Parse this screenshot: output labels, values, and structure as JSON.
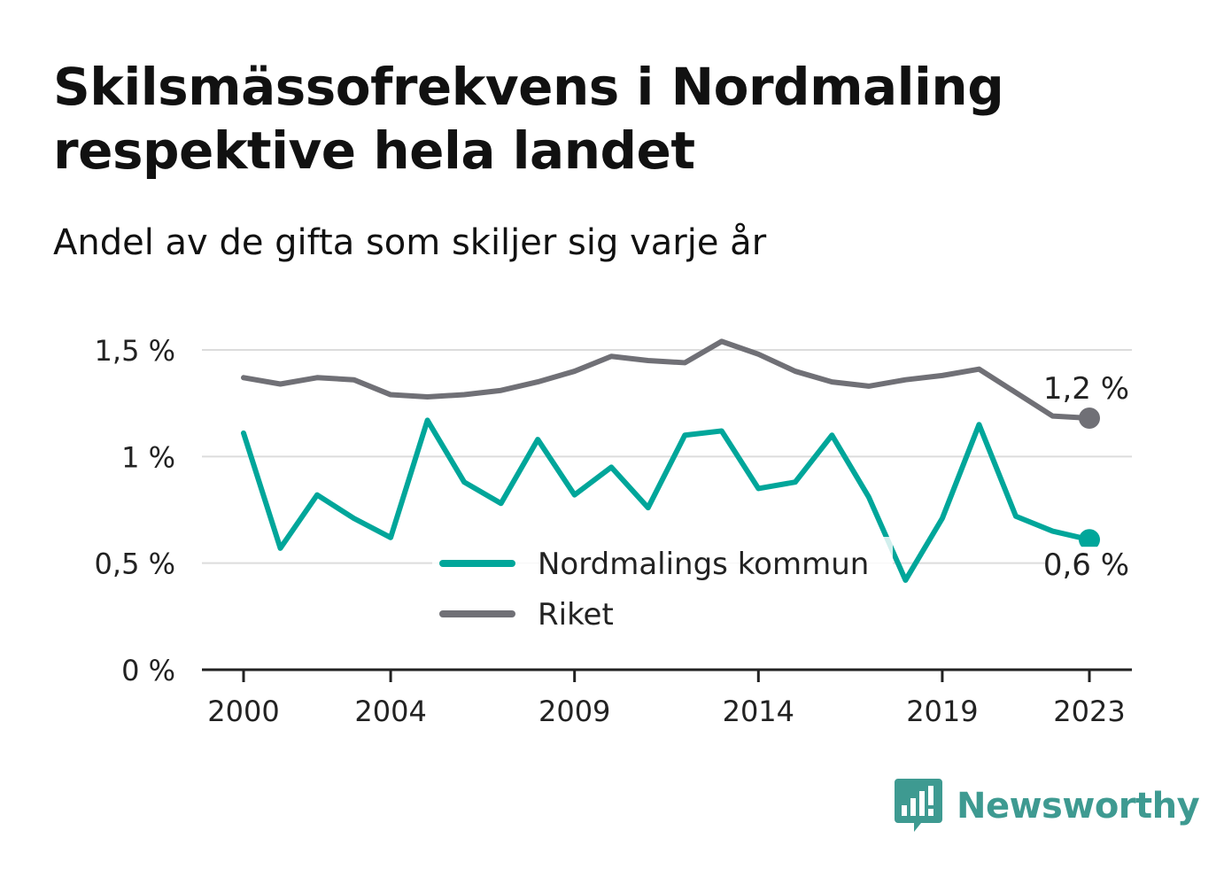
{
  "header": {
    "title": "Skilsmässofrekvens i Nordmaling respektive hela landet",
    "subtitle": "Andel av de gifta som skiljer sig varje år"
  },
  "brand": {
    "name": "Newsworthy",
    "icon": "newsworthy-logo-icon",
    "color": "#3e9a91"
  },
  "chart_data": {
    "type": "line",
    "title": "Skilsmässofrekvens i Nordmaling respektive hela landet",
    "subtitle": "Andel av de gifta som skiljer sig varje år",
    "xlabel": "",
    "ylabel": "",
    "x": [
      2000,
      2001,
      2002,
      2003,
      2004,
      2005,
      2006,
      2007,
      2008,
      2009,
      2010,
      2011,
      2012,
      2013,
      2014,
      2015,
      2016,
      2017,
      2018,
      2019,
      2020,
      2021,
      2022,
      2023
    ],
    "x_ticks": [
      2000,
      2004,
      2009,
      2014,
      2019,
      2023
    ],
    "y_ticks": [
      0,
      0.5,
      1,
      1.5
    ],
    "y_tick_labels": [
      "0 %",
      "0,5 %",
      "1 %",
      "1,5 %"
    ],
    "ylim": [
      0,
      1.5
    ],
    "grid": true,
    "legend_position": "bottom-center",
    "series": [
      {
        "name": "Nordmalings kommun",
        "color": "#00a69a",
        "values": [
          1.11,
          0.57,
          0.82,
          0.71,
          0.62,
          1.17,
          0.88,
          0.78,
          1.08,
          0.82,
          0.95,
          0.76,
          1.1,
          1.12,
          0.85,
          0.88,
          1.1,
          0.81,
          0.42,
          0.71,
          1.15,
          0.72,
          0.65,
          0.61
        ],
        "end_label": "0,6 %"
      },
      {
        "name": "Riket",
        "color": "#707076",
        "values": [
          1.37,
          1.34,
          1.37,
          1.36,
          1.29,
          1.28,
          1.29,
          1.31,
          1.35,
          1.4,
          1.47,
          1.45,
          1.44,
          1.54,
          1.48,
          1.4,
          1.35,
          1.33,
          1.36,
          1.38,
          1.41,
          1.3,
          1.19,
          1.18
        ],
        "end_label": "1,2 %"
      }
    ]
  }
}
